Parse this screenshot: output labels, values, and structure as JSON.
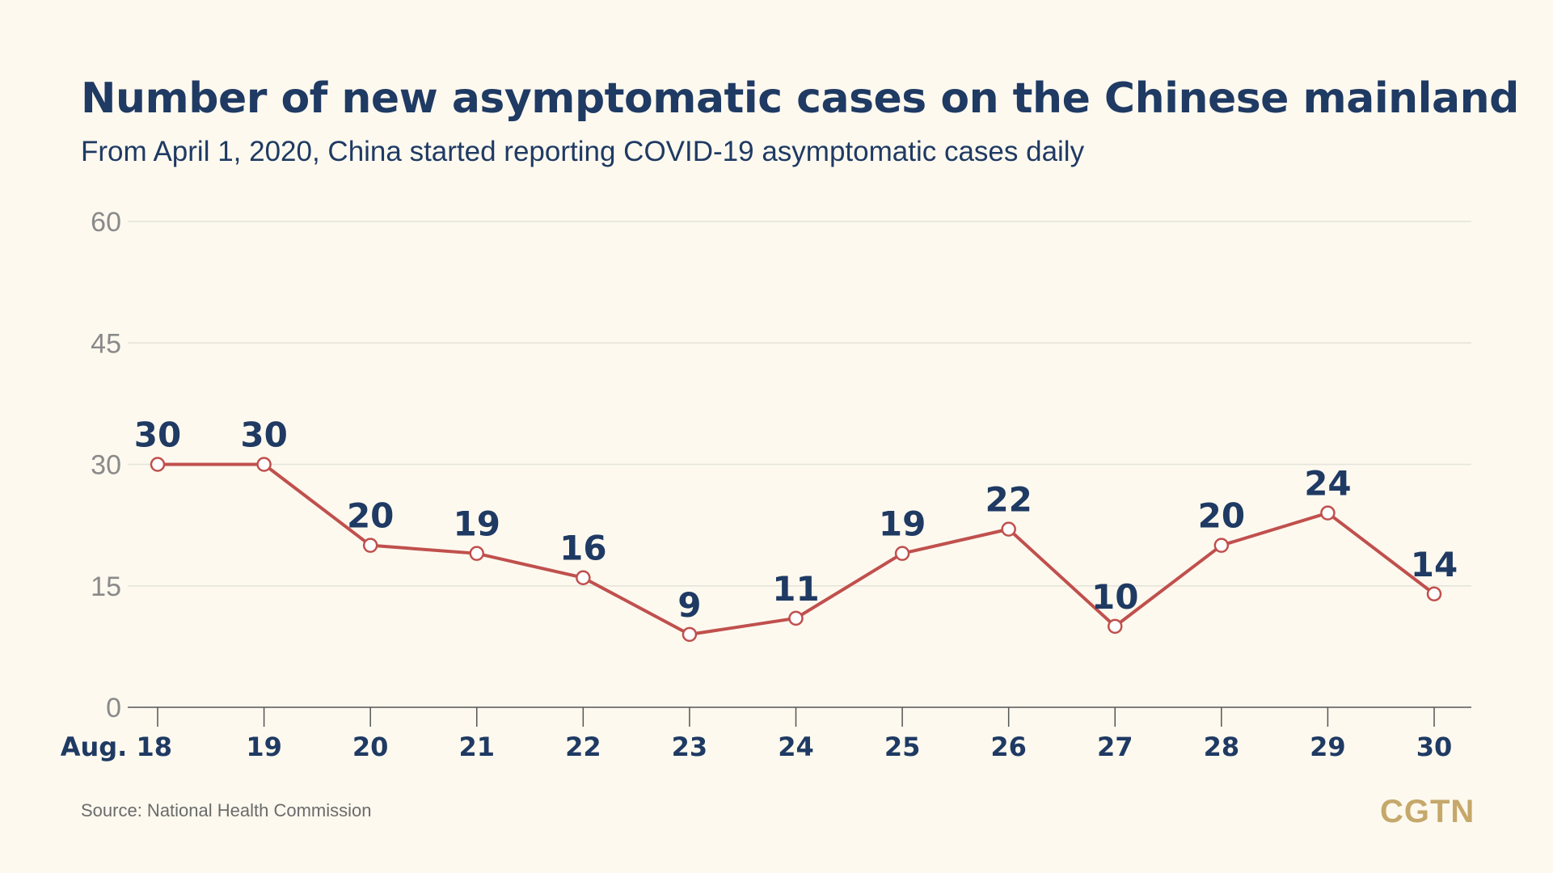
{
  "colors": {
    "background": "#fdf9ef",
    "title": "#1f3a63",
    "line": "#c0504d",
    "grid": "#e4e4da",
    "axis_tick_text": "#8a8a8a",
    "logo": "#c5a86a"
  },
  "header": {
    "title": "Number of new asymptomatic cases on the Chinese mainland",
    "subtitle": "From April 1, 2020, China started reporting COVID-19 asymptomatic cases daily"
  },
  "footer": {
    "source": "Source: National Health Commission",
    "logo": "CGTN"
  },
  "chart_data": {
    "type": "line",
    "title": "Number of new asymptomatic cases on the Chinese mainland",
    "subtitle": "From April 1, 2020, China started reporting COVID-19 asymptomatic cases daily",
    "categories": [
      "Aug. 18",
      "19",
      "20",
      "21",
      "22",
      "23",
      "24",
      "25",
      "26",
      "27",
      "28",
      "29",
      "30"
    ],
    "series": [
      {
        "values": [
          30,
          30,
          20,
          19,
          16,
          9,
          11,
          19,
          22,
          10,
          20,
          24,
          14
        ]
      }
    ],
    "ylim": [
      0,
      60
    ],
    "yticks": [
      0,
      15,
      30,
      45,
      60
    ],
    "grid": true,
    "data_labels": true
  }
}
